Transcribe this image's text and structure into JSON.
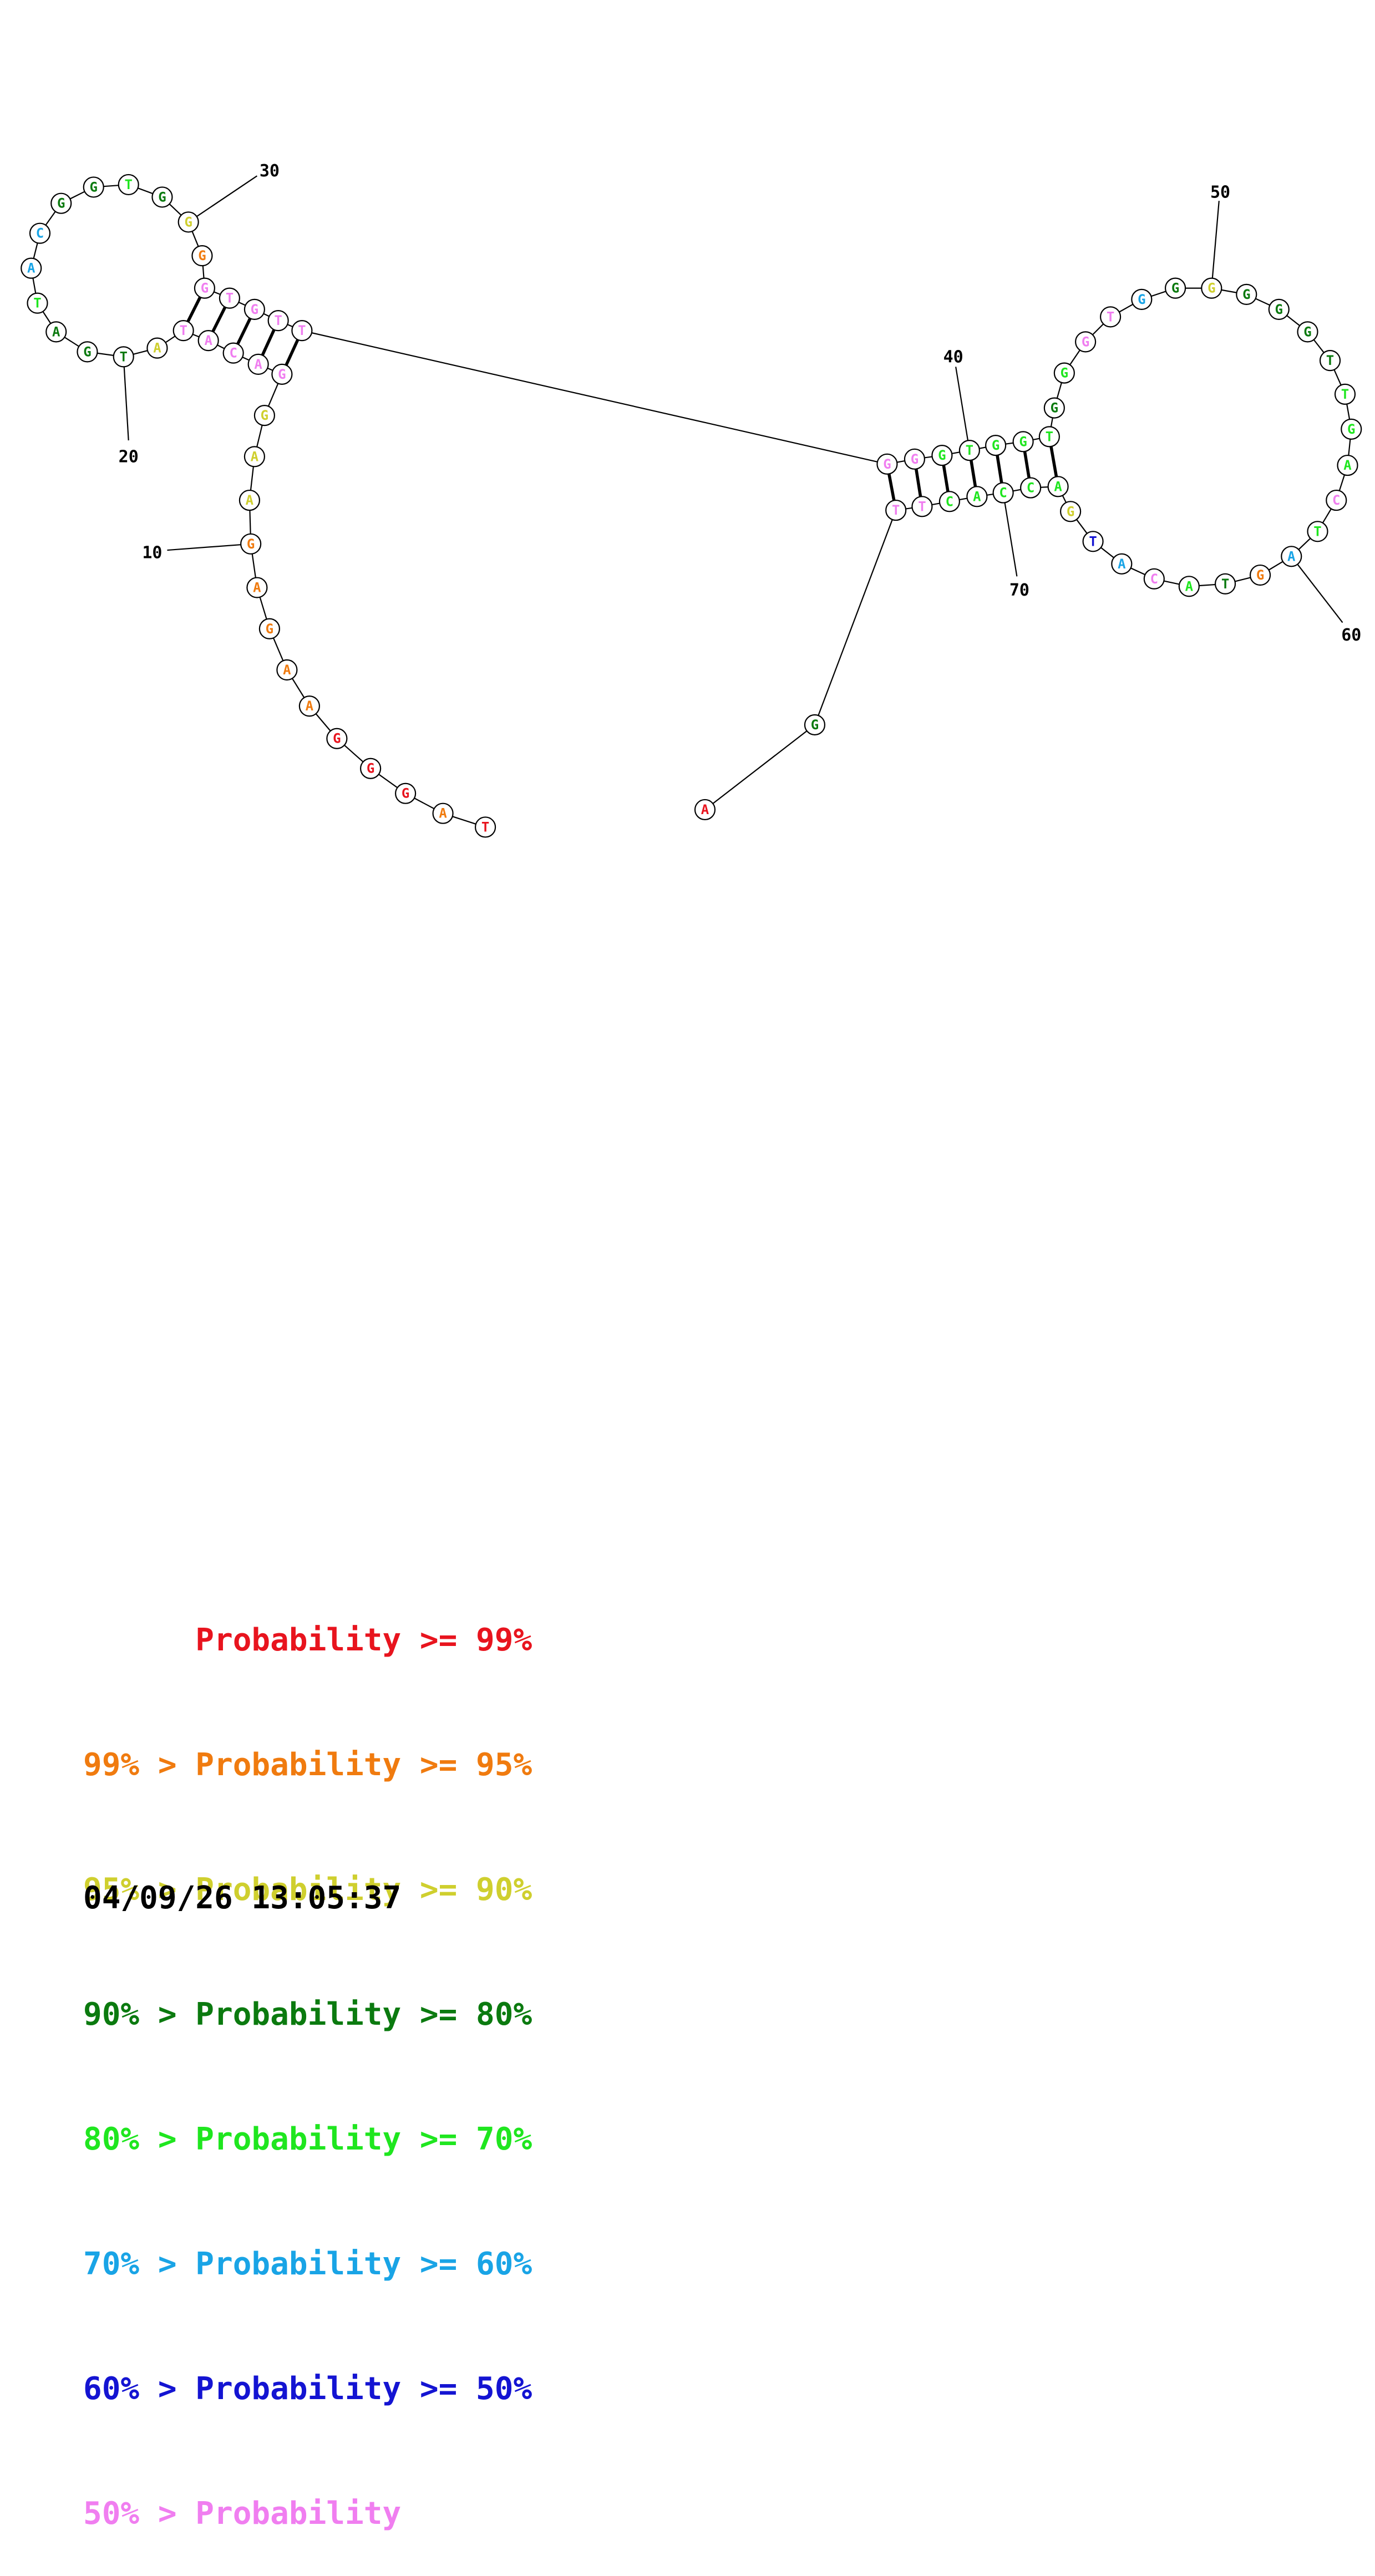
{
  "colors": {
    "p99": "#e8141e",
    "p95": "#f07b0f",
    "p90": "#cfcf2e",
    "p80": "#0b7a0f",
    "p70": "#1fe61f",
    "p60": "#19a4e6",
    "p50": "#1414d2",
    "plow": "#f07ef0"
  },
  "sequence": [
    {
      "n": 1,
      "b": "T",
      "c": "p99"
    },
    {
      "n": 2,
      "b": "A",
      "c": "p95"
    },
    {
      "n": 3,
      "b": "G",
      "c": "p99"
    },
    {
      "n": 4,
      "b": "G",
      "c": "p99"
    },
    {
      "n": 5,
      "b": "G",
      "c": "p99"
    },
    {
      "n": 6,
      "b": "A",
      "c": "p95"
    },
    {
      "n": 7,
      "b": "A",
      "c": "p95"
    },
    {
      "n": 8,
      "b": "G",
      "c": "p95"
    },
    {
      "n": 9,
      "b": "A",
      "c": "p95"
    },
    {
      "n": 10,
      "b": "G",
      "c": "p95"
    },
    {
      "n": 11,
      "b": "A",
      "c": "p90"
    },
    {
      "n": 12,
      "b": "A",
      "c": "p90"
    },
    {
      "n": 13,
      "b": "G",
      "c": "p90"
    },
    {
      "n": 14,
      "b": "G",
      "c": "plow"
    },
    {
      "n": 15,
      "b": "A",
      "c": "plow"
    },
    {
      "n": 16,
      "b": "C",
      "c": "plow"
    },
    {
      "n": 17,
      "b": "A",
      "c": "plow"
    },
    {
      "n": 18,
      "b": "T",
      "c": "plow"
    },
    {
      "n": 19,
      "b": "A",
      "c": "p90"
    },
    {
      "n": 20,
      "b": "T",
      "c": "p80"
    },
    {
      "n": 21,
      "b": "G",
      "c": "p80"
    },
    {
      "n": 22,
      "b": "A",
      "c": "p80"
    },
    {
      "n": 23,
      "b": "T",
      "c": "p70"
    },
    {
      "n": 24,
      "b": "A",
      "c": "p60"
    },
    {
      "n": 25,
      "b": "C",
      "c": "p60"
    },
    {
      "n": 26,
      "b": "G",
      "c": "p80"
    },
    {
      "n": 27,
      "b": "G",
      "c": "p80"
    },
    {
      "n": 28,
      "b": "T",
      "c": "p70"
    },
    {
      "n": 29,
      "b": "G",
      "c": "p80"
    },
    {
      "n": 30,
      "b": "G",
      "c": "p90"
    },
    {
      "n": 31,
      "b": "G",
      "c": "p95"
    },
    {
      "n": 32,
      "b": "G",
      "c": "plow"
    },
    {
      "n": 33,
      "b": "T",
      "c": "plow"
    },
    {
      "n": 34,
      "b": "G",
      "c": "plow"
    },
    {
      "n": 35,
      "b": "T",
      "c": "plow"
    },
    {
      "n": 36,
      "b": "T",
      "c": "plow"
    },
    {
      "n": 37,
      "b": "G",
      "c": "plow"
    },
    {
      "n": 38,
      "b": "G",
      "c": "plow"
    },
    {
      "n": 39,
      "b": "G",
      "c": "p70"
    },
    {
      "n": 40,
      "b": "T",
      "c": "p70"
    },
    {
      "n": 41,
      "b": "G",
      "c": "p70"
    },
    {
      "n": 42,
      "b": "G",
      "c": "p70"
    },
    {
      "n": 43,
      "b": "T",
      "c": "p70"
    },
    {
      "n": 44,
      "b": "G",
      "c": "p80"
    },
    {
      "n": 45,
      "b": "G",
      "c": "p70"
    },
    {
      "n": 46,
      "b": "G",
      "c": "plow"
    },
    {
      "n": 47,
      "b": "T",
      "c": "plow"
    },
    {
      "n": 48,
      "b": "G",
      "c": "p60"
    },
    {
      "n": 49,
      "b": "G",
      "c": "p80"
    },
    {
      "n": 50,
      "b": "G",
      "c": "p90"
    },
    {
      "n": 51,
      "b": "G",
      "c": "p80"
    },
    {
      "n": 52,
      "b": "G",
      "c": "p80"
    },
    {
      "n": 53,
      "b": "G",
      "c": "p80"
    },
    {
      "n": 54,
      "b": "T",
      "c": "p80"
    },
    {
      "n": 55,
      "b": "T",
      "c": "p70"
    },
    {
      "n": 56,
      "b": "G",
      "c": "p70"
    },
    {
      "n": 57,
      "b": "A",
      "c": "p70"
    },
    {
      "n": 58,
      "b": "C",
      "c": "plow"
    },
    {
      "n": 59,
      "b": "T",
      "c": "p70"
    },
    {
      "n": 60,
      "b": "A",
      "c": "p60"
    },
    {
      "n": 61,
      "b": "G",
      "c": "p95"
    },
    {
      "n": 62,
      "b": "T",
      "c": "p80"
    },
    {
      "n": 63,
      "b": "A",
      "c": "p70"
    },
    {
      "n": 64,
      "b": "C",
      "c": "plow"
    },
    {
      "n": 65,
      "b": "A",
      "c": "p60"
    },
    {
      "n": 66,
      "b": "T",
      "c": "p50"
    },
    {
      "n": 67,
      "b": "G",
      "c": "p90"
    },
    {
      "n": 68,
      "b": "A",
      "c": "p70"
    },
    {
      "n": 69,
      "b": "C",
      "c": "p70"
    },
    {
      "n": 70,
      "b": "C",
      "c": "p70"
    },
    {
      "n": 71,
      "b": "A",
      "c": "p70"
    },
    {
      "n": 72,
      "b": "C",
      "c": "p70"
    },
    {
      "n": 73,
      "b": "T",
      "c": "plow"
    },
    {
      "n": 74,
      "b": "T",
      "c": "plow"
    },
    {
      "n": 75,
      "b": "G",
      "c": "p80"
    },
    {
      "n": 76,
      "b": "A",
      "c": "p99"
    }
  ],
  "pairs": [
    [
      14,
      36
    ],
    [
      15,
      35
    ],
    [
      16,
      34
    ],
    [
      17,
      33
    ],
    [
      18,
      32
    ],
    [
      37,
      74
    ],
    [
      38,
      73
    ],
    [
      39,
      72
    ],
    [
      40,
      71
    ],
    [
      41,
      70
    ],
    [
      42,
      69
    ],
    [
      43,
      68
    ]
  ],
  "tick_labels": [
    {
      "n": 10,
      "text": "10"
    },
    {
      "n": 20,
      "text": "20"
    },
    {
      "n": 30,
      "text": "30"
    },
    {
      "n": 40,
      "text": "40"
    },
    {
      "n": 50,
      "text": "50"
    },
    {
      "n": 60,
      "text": "60"
    },
    {
      "n": 70,
      "text": "70"
    }
  ],
  "legend": [
    {
      "text": "      Probability >= 99%",
      "c": "p99"
    },
    {
      "text": "99% > Probability >= 95%",
      "c": "p95"
    },
    {
      "text": "95% > Probability >= 90%",
      "c": "p90"
    },
    {
      "text": "90% > Probability >= 80%",
      "c": "p80"
    },
    {
      "text": "80% > Probability >= 70%",
      "c": "p70"
    },
    {
      "text": "70% > Probability >= 60%",
      "c": "p60"
    },
    {
      "text": "60% > Probability >= 50%",
      "c": "p50"
    },
    {
      "text": "50% > Probability",
      "c": "plow"
    }
  ],
  "timestamp": "04/09/26 13:05:37"
}
